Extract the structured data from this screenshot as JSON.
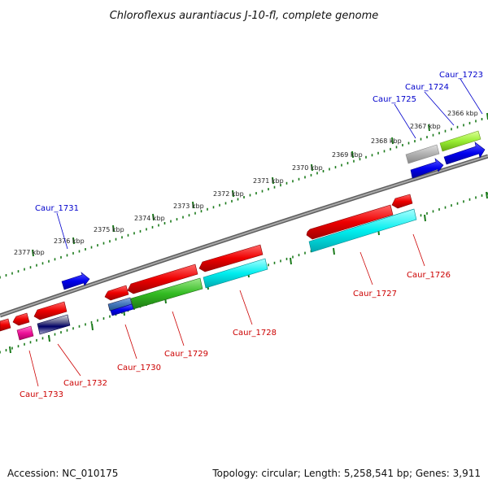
{
  "title": "Chloroflexus aurantiacus J-10-fl, complete genome",
  "footer": {
    "accession": "Accession: NC_010175",
    "summary": "Topology: circular; Length: 5,258,541 bp; Genes: 3,911"
  },
  "ruler_labels": [
    "2366 kbp",
    "2367 kbp",
    "2368 kbp",
    "2369 kbp",
    "2370 kbp",
    "2371 kbp",
    "2372 kbp",
    "2373 kbp",
    "2374 kbp",
    "2375 kbp",
    "2376 kbp",
    "2377 kbp"
  ],
  "genes_forward": [
    "Caur_1723",
    "Caur_1724",
    "Caur_1725",
    "Caur_1731"
  ],
  "genes_reverse": [
    "Caur_1726",
    "Caur_1727",
    "Caur_1728",
    "Caur_1729",
    "Caur_1730",
    "Caur_1732",
    "Caur_1733"
  ],
  "colors": {
    "forward_label": "#0000cc",
    "reverse_label": "#cc0000",
    "backbone": "#808080",
    "tick": "#1a7a1a"
  }
}
